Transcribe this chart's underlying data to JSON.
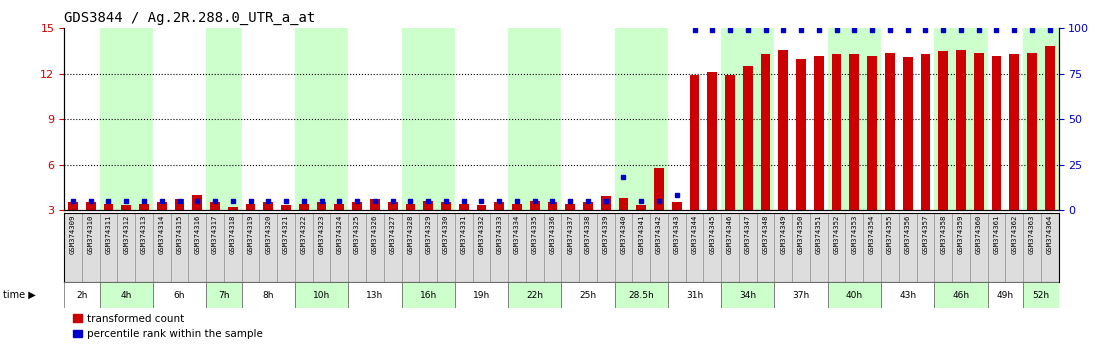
{
  "title": "GDS3844 / Ag.2R.288.0_UTR_a_at",
  "gsm_ids": [
    "GSM374309",
    "GSM374310",
    "GSM374311",
    "GSM374312",
    "GSM374313",
    "GSM374314",
    "GSM374315",
    "GSM374316",
    "GSM374317",
    "GSM374318",
    "GSM374319",
    "GSM374320",
    "GSM374321",
    "GSM374322",
    "GSM374323",
    "GSM374324",
    "GSM374325",
    "GSM374326",
    "GSM374327",
    "GSM374328",
    "GSM374329",
    "GSM374330",
    "GSM374331",
    "GSM374332",
    "GSM374333",
    "GSM374334",
    "GSM374335",
    "GSM374336",
    "GSM374337",
    "GSM374338",
    "GSM374339",
    "GSM374340",
    "GSM374341",
    "GSM374342",
    "GSM374343",
    "GSM374344",
    "GSM374345",
    "GSM374346",
    "GSM374347",
    "GSM374348",
    "GSM374349",
    "GSM374350",
    "GSM374351",
    "GSM374352",
    "GSM374353",
    "GSM374354",
    "GSM374355",
    "GSM374356",
    "GSM374357",
    "GSM374358",
    "GSM374359",
    "GSM374360",
    "GSM374361",
    "GSM374362",
    "GSM374363",
    "GSM374364"
  ],
  "red_values": [
    3.5,
    3.5,
    3.4,
    3.3,
    3.4,
    3.5,
    3.7,
    4.0,
    3.5,
    3.2,
    3.4,
    3.5,
    3.3,
    3.4,
    3.5,
    3.4,
    3.5,
    3.7,
    3.5,
    3.4,
    3.6,
    3.5,
    3.4,
    3.3,
    3.5,
    3.4,
    3.6,
    3.5,
    3.4,
    3.5,
    3.9,
    3.8,
    3.3,
    5.8,
    3.5,
    11.9,
    12.1,
    11.9,
    12.5,
    13.3,
    13.6,
    13.0,
    13.2,
    13.3,
    13.3,
    13.2,
    13.4,
    13.1,
    13.3,
    13.5,
    13.6,
    13.4,
    13.2,
    13.3,
    13.4,
    13.8
  ],
  "blue_values": [
    5,
    5,
    5,
    5,
    5,
    5,
    5,
    5,
    5,
    5,
    5,
    5,
    5,
    5,
    5,
    5,
    5,
    5,
    5,
    5,
    5,
    5,
    5,
    5,
    5,
    5,
    5,
    5,
    5,
    5,
    5,
    18,
    5,
    5,
    8,
    99,
    99,
    99,
    99,
    99,
    99,
    99,
    99,
    99,
    99,
    99,
    99,
    99,
    99,
    99,
    99,
    99,
    99,
    99,
    99,
    99
  ],
  "time_groups": [
    {
      "label": "2h",
      "start": 0,
      "end": 2,
      "color": "#ffffff",
      "cell_color": "#dddddd"
    },
    {
      "label": "4h",
      "start": 2,
      "end": 5,
      "color": "#ccffcc",
      "cell_color": "#dddddd"
    },
    {
      "label": "6h",
      "start": 5,
      "end": 8,
      "color": "#ffffff",
      "cell_color": "#dddddd"
    },
    {
      "label": "7h",
      "start": 8,
      "end": 10,
      "color": "#ccffcc",
      "cell_color": "#dddddd"
    },
    {
      "label": "8h",
      "start": 10,
      "end": 13,
      "color": "#ffffff",
      "cell_color": "#dddddd"
    },
    {
      "label": "10h",
      "start": 13,
      "end": 16,
      "color": "#ccffcc",
      "cell_color": "#dddddd"
    },
    {
      "label": "13h",
      "start": 16,
      "end": 19,
      "color": "#ffffff",
      "cell_color": "#dddddd"
    },
    {
      "label": "16h",
      "start": 19,
      "end": 22,
      "color": "#ccffcc",
      "cell_color": "#dddddd"
    },
    {
      "label": "19h",
      "start": 22,
      "end": 25,
      "color": "#ffffff",
      "cell_color": "#dddddd"
    },
    {
      "label": "22h",
      "start": 25,
      "end": 28,
      "color": "#ccffcc",
      "cell_color": "#dddddd"
    },
    {
      "label": "25h",
      "start": 28,
      "end": 31,
      "color": "#ffffff",
      "cell_color": "#dddddd"
    },
    {
      "label": "28.5h",
      "start": 31,
      "end": 34,
      "color": "#ccffcc",
      "cell_color": "#dddddd"
    },
    {
      "label": "31h",
      "start": 34,
      "end": 37,
      "color": "#ffffff",
      "cell_color": "#dddddd"
    },
    {
      "label": "34h",
      "start": 37,
      "end": 40,
      "color": "#ccffcc",
      "cell_color": "#dddddd"
    },
    {
      "label": "37h",
      "start": 40,
      "end": 43,
      "color": "#ffffff",
      "cell_color": "#dddddd"
    },
    {
      "label": "40h",
      "start": 43,
      "end": 46,
      "color": "#ccffcc",
      "cell_color": "#dddddd"
    },
    {
      "label": "43h",
      "start": 46,
      "end": 49,
      "color": "#ffffff",
      "cell_color": "#dddddd"
    },
    {
      "label": "46h",
      "start": 49,
      "end": 52,
      "color": "#ccffcc",
      "cell_color": "#dddddd"
    },
    {
      "label": "49h",
      "start": 52,
      "end": 54,
      "color": "#ffffff",
      "cell_color": "#dddddd"
    },
    {
      "label": "52h",
      "start": 54,
      "end": 56,
      "color": "#ccffcc",
      "cell_color": "#dddddd"
    }
  ],
  "ylim_left": [
    3,
    15
  ],
  "ylim_right": [
    0,
    100
  ],
  "yticks_left": [
    3,
    6,
    9,
    12,
    15
  ],
  "yticks_right": [
    0,
    25,
    50,
    75,
    100
  ],
  "bar_color": "#cc0000",
  "dot_color": "#0000cc",
  "bg_color": "#ffffff",
  "title_fontsize": 10
}
